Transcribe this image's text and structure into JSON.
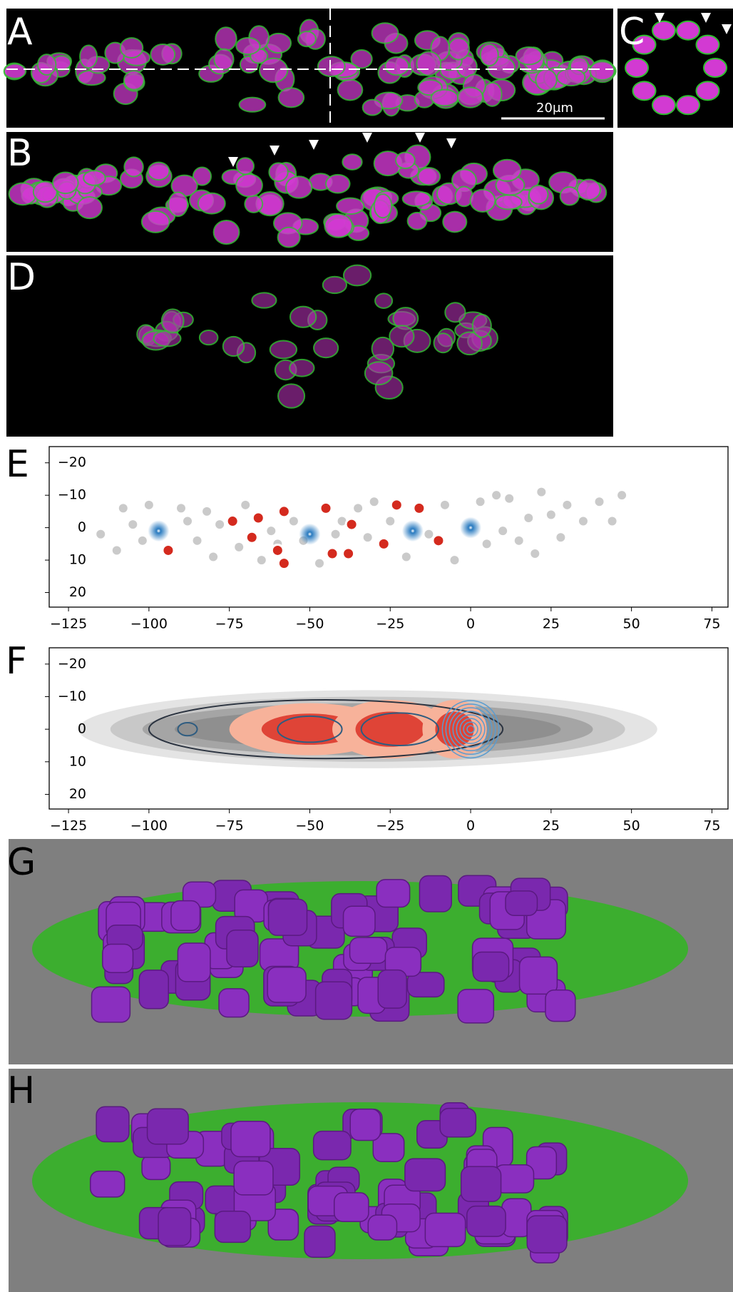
{
  "panels": {
    "A": {
      "label": "A",
      "scale_bar": "20μm"
    },
    "B": {
      "label": "B"
    },
    "C": {
      "label": "C"
    },
    "D": {
      "label": "D"
    },
    "E": {
      "label": "E"
    },
    "F": {
      "label": "F"
    },
    "G": {
      "label": "G"
    },
    "H": {
      "label": "H"
    }
  },
  "chart_data": [
    {
      "type": "scatter",
      "xlim": [
        -131,
        80
      ],
      "ylim": [
        -25,
        24.5
      ],
      "y_inverted": true,
      "xticks": [
        {
          "value": -125,
          "label": "−125"
        },
        {
          "value": -100,
          "label": "−100"
        },
        {
          "value": -75,
          "label": "−75"
        },
        {
          "value": -50,
          "label": "−50"
        },
        {
          "value": -25,
          "label": "−25"
        },
        0,
        25,
        50,
        75
      ],
      "yticks": [
        {
          "value": -20,
          "label": "−20"
        },
        {
          "value": -10,
          "label": "−10"
        },
        0,
        10,
        20
      ],
      "series": [
        {
          "color": "#8a8a8a",
          "x": [
            -115,
            -108,
            -105,
            -110,
            -100,
            -102,
            -90,
            -88,
            -85,
            -82,
            -80,
            -78,
            -72,
            -70,
            -65,
            -62,
            -55,
            -52,
            -47,
            -40,
            -35,
            -32,
            -30,
            -20,
            -13,
            -8,
            -5,
            3,
            5,
            8,
            10,
            12,
            15,
            18,
            20,
            22,
            25,
            28,
            30,
            35,
            40,
            44,
            47,
            -60,
            -25,
            -42
          ],
          "values": [
            2,
            -6,
            -1,
            7,
            -7,
            4,
            -6,
            -2,
            4,
            -5,
            9,
            -1,
            6,
            -7,
            10,
            1,
            -2,
            4,
            11,
            -2,
            -6,
            3,
            -8,
            9,
            2,
            -7,
            10,
            -8,
            5,
            -10,
            1,
            -9,
            4,
            -3,
            8,
            -11,
            -4,
            3,
            -7,
            -2,
            -8,
            -2,
            -10,
            5,
            -2,
            2
          ]
        },
        {
          "color": "#d42a1e",
          "x": [
            -94,
            -74,
            -68,
            -66,
            -60,
            -58,
            -58,
            -45,
            -43,
            -38,
            -37,
            -27,
            -23,
            -16,
            -10
          ],
          "values": [
            7,
            -2,
            3,
            -3,
            7,
            11,
            -5,
            -6,
            8,
            8,
            -1,
            5,
            -7,
            -6,
            4
          ]
        },
        {
          "color": "#2a7bc0",
          "x": [
            -97,
            -50,
            -18,
            0
          ],
          "values": [
            1,
            2,
            1,
            0
          ]
        }
      ]
    },
    {
      "type": "density",
      "xlim": [
        -131,
        80
      ],
      "ylim": [
        -25,
        24.5
      ],
      "y_inverted": true,
      "xticks": [
        {
          "value": -125,
          "label": "−125"
        },
        {
          "value": -100,
          "label": "−100"
        },
        {
          "value": -75,
          "label": "−75"
        },
        {
          "value": -50,
          "label": "−50"
        },
        {
          "value": -25,
          "label": "−25"
        },
        0,
        25,
        50,
        75
      ],
      "yticks": [
        {
          "value": -20,
          "label": "−20"
        },
        {
          "value": -10,
          "label": "−10"
        },
        0,
        10,
        20
      ]
    }
  ]
}
